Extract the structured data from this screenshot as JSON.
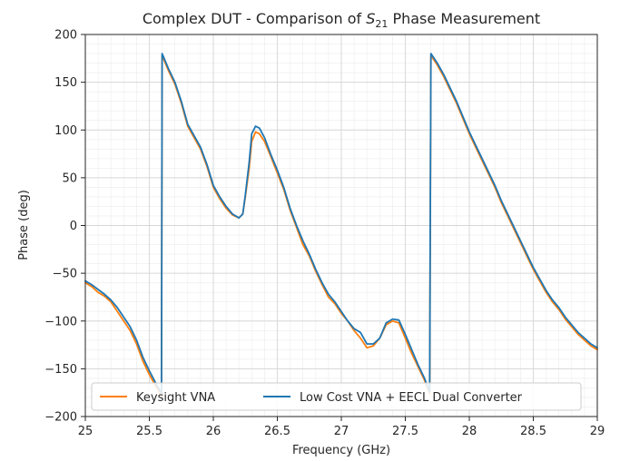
{
  "chart_data": {
    "type": "line",
    "title": {
      "prefix": "Complex DUT - Comparison of ",
      "symbol": "S",
      "subscript": "21",
      "suffix": " Phase Measurement"
    },
    "xlabel": "Frequency (GHz)",
    "ylabel": "Phase (deg)",
    "xlim": [
      25,
      29
    ],
    "ylim": [
      -200,
      200
    ],
    "xticks": [
      25,
      25.5,
      26,
      26.5,
      27,
      27.5,
      28,
      28.5,
      29
    ],
    "xtick_labels": [
      "25",
      "25.5",
      "26",
      "26.5",
      "27",
      "27.5",
      "28",
      "28.5",
      "29"
    ],
    "yticks": [
      -200,
      -150,
      -100,
      -50,
      0,
      50,
      100,
      150,
      200
    ],
    "ytick_labels": [
      "−200",
      "−150",
      "−100",
      "−50",
      "0",
      "50",
      "100",
      "150",
      "200"
    ],
    "grid": true,
    "legend_position": "bottom",
    "series": [
      {
        "name": "Keysight VNA",
        "color": "#ff7f0e",
        "points": [
          [
            25.0,
            -60
          ],
          [
            25.05,
            -64
          ],
          [
            25.1,
            -70
          ],
          [
            25.15,
            -74
          ],
          [
            25.2,
            -80
          ],
          [
            25.25,
            -90
          ],
          [
            25.3,
            -100
          ],
          [
            25.35,
            -110
          ],
          [
            25.4,
            -124
          ],
          [
            25.45,
            -142
          ],
          [
            25.5,
            -156
          ],
          [
            25.55,
            -168
          ],
          [
            25.595,
            -178
          ],
          [
            25.6,
            178
          ],
          [
            25.65,
            162
          ],
          [
            25.7,
            148
          ],
          [
            25.75,
            128
          ],
          [
            25.8,
            104
          ],
          [
            25.85,
            92
          ],
          [
            25.9,
            80
          ],
          [
            25.95,
            62
          ],
          [
            26.0,
            40
          ],
          [
            26.05,
            28
          ],
          [
            26.1,
            18
          ],
          [
            26.15,
            11
          ],
          [
            26.2,
            8
          ],
          [
            26.23,
            12
          ],
          [
            26.25,
            30
          ],
          [
            26.28,
            60
          ],
          [
            26.3,
            88
          ],
          [
            26.33,
            98
          ],
          [
            26.36,
            96
          ],
          [
            26.4,
            88
          ],
          [
            26.45,
            72
          ],
          [
            26.5,
            55
          ],
          [
            26.55,
            38
          ],
          [
            26.6,
            16
          ],
          [
            26.65,
            -2
          ],
          [
            26.7,
            -20
          ],
          [
            26.75,
            -32
          ],
          [
            26.8,
            -48
          ],
          [
            26.85,
            -62
          ],
          [
            26.9,
            -75
          ],
          [
            26.95,
            -82
          ],
          [
            27.0,
            -92
          ],
          [
            27.05,
            -100
          ],
          [
            27.1,
            -110
          ],
          [
            27.15,
            -118
          ],
          [
            27.2,
            -128
          ],
          [
            27.25,
            -126
          ],
          [
            27.3,
            -118
          ],
          [
            27.35,
            -104
          ],
          [
            27.4,
            -100
          ],
          [
            27.45,
            -102
          ],
          [
            27.5,
            -118
          ],
          [
            27.55,
            -134
          ],
          [
            27.6,
            -148
          ],
          [
            27.65,
            -162
          ],
          [
            27.69,
            -176
          ],
          [
            27.7,
            178
          ],
          [
            27.75,
            168
          ],
          [
            27.8,
            156
          ],
          [
            27.85,
            142
          ],
          [
            27.9,
            128
          ],
          [
            27.95,
            112
          ],
          [
            28.0,
            96
          ],
          [
            28.05,
            82
          ],
          [
            28.1,
            68
          ],
          [
            28.15,
            54
          ],
          [
            28.2,
            40
          ],
          [
            28.25,
            24
          ],
          [
            28.3,
            10
          ],
          [
            28.35,
            -4
          ],
          [
            28.4,
            -18
          ],
          [
            28.45,
            -32
          ],
          [
            28.5,
            -46
          ],
          [
            28.55,
            -58
          ],
          [
            28.6,
            -70
          ],
          [
            28.65,
            -80
          ],
          [
            28.7,
            -88
          ],
          [
            28.75,
            -98
          ],
          [
            28.8,
            -106
          ],
          [
            28.85,
            -114
          ],
          [
            28.9,
            -120
          ],
          [
            28.95,
            -126
          ],
          [
            29.0,
            -130
          ]
        ]
      },
      {
        "name": "Low Cost VNA + EECL Dual Converter",
        "color": "#1f77b4",
        "points": [
          [
            25.0,
            -58
          ],
          [
            25.05,
            -62
          ],
          [
            25.1,
            -67
          ],
          [
            25.15,
            -72
          ],
          [
            25.2,
            -78
          ],
          [
            25.25,
            -86
          ],
          [
            25.3,
            -96
          ],
          [
            25.35,
            -106
          ],
          [
            25.4,
            -120
          ],
          [
            25.45,
            -138
          ],
          [
            25.5,
            -152
          ],
          [
            25.55,
            -165
          ],
          [
            25.595,
            -176
          ],
          [
            25.6,
            180
          ],
          [
            25.65,
            164
          ],
          [
            25.7,
            150
          ],
          [
            25.75,
            130
          ],
          [
            25.8,
            106
          ],
          [
            25.85,
            94
          ],
          [
            25.9,
            82
          ],
          [
            25.95,
            64
          ],
          [
            26.0,
            42
          ],
          [
            26.05,
            30
          ],
          [
            26.1,
            20
          ],
          [
            26.15,
            12
          ],
          [
            26.2,
            8
          ],
          [
            26.23,
            12
          ],
          [
            26.25,
            32
          ],
          [
            26.28,
            66
          ],
          [
            26.3,
            96
          ],
          [
            26.33,
            104
          ],
          [
            26.36,
            102
          ],
          [
            26.4,
            92
          ],
          [
            26.45,
            74
          ],
          [
            26.5,
            58
          ],
          [
            26.55,
            40
          ],
          [
            26.6,
            18
          ],
          [
            26.65,
            0
          ],
          [
            26.7,
            -16
          ],
          [
            26.75,
            -30
          ],
          [
            26.8,
            -46
          ],
          [
            26.85,
            -60
          ],
          [
            26.9,
            -72
          ],
          [
            26.95,
            -80
          ],
          [
            27.0,
            -90
          ],
          [
            27.05,
            -100
          ],
          [
            27.1,
            -108
          ],
          [
            27.15,
            -112
          ],
          [
            27.2,
            -124
          ],
          [
            27.25,
            -124
          ],
          [
            27.3,
            -118
          ],
          [
            27.35,
            -102
          ],
          [
            27.4,
            -98
          ],
          [
            27.45,
            -99
          ],
          [
            27.5,
            -114
          ],
          [
            27.55,
            -130
          ],
          [
            27.6,
            -146
          ],
          [
            27.65,
            -160
          ],
          [
            27.69,
            -174
          ],
          [
            27.7,
            180
          ],
          [
            27.75,
            170
          ],
          [
            27.8,
            158
          ],
          [
            27.85,
            144
          ],
          [
            27.9,
            130
          ],
          [
            27.95,
            114
          ],
          [
            28.0,
            98
          ],
          [
            28.05,
            84
          ],
          [
            28.1,
            70
          ],
          [
            28.15,
            56
          ],
          [
            28.2,
            42
          ],
          [
            28.25,
            26
          ],
          [
            28.3,
            12
          ],
          [
            28.35,
            -2
          ],
          [
            28.4,
            -16
          ],
          [
            28.45,
            -30
          ],
          [
            28.5,
            -44
          ],
          [
            28.55,
            -56
          ],
          [
            28.6,
            -68
          ],
          [
            28.65,
            -78
          ],
          [
            28.7,
            -86
          ],
          [
            28.75,
            -96
          ],
          [
            28.8,
            -104
          ],
          [
            28.85,
            -112
          ],
          [
            28.9,
            -118
          ],
          [
            28.95,
            -124
          ],
          [
            29.0,
            -128
          ]
        ]
      }
    ]
  }
}
